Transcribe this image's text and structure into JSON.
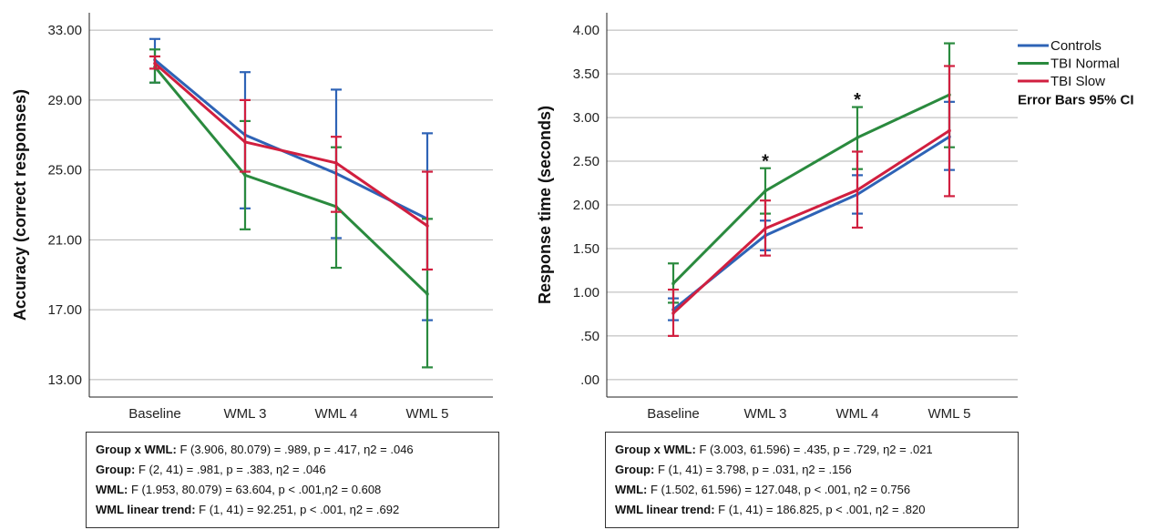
{
  "chart_data": [
    {
      "type": "line",
      "ylabel": "Accuracy (correct responses)",
      "xlabel": "",
      "categories": [
        "Baseline",
        "WML 3",
        "WML 4",
        "WML 5"
      ],
      "yticks": [
        "13.00",
        "17.00",
        "21.00",
        "25.00",
        "29.00",
        "33.00"
      ],
      "ylim": [
        12,
        34
      ],
      "grid": true,
      "series": [
        {
          "name": "Controls",
          "color": "#2e63b6",
          "values": [
            31.3,
            27.0,
            24.8,
            22.2
          ],
          "ci_low": [
            30.0,
            22.8,
            21.1,
            16.4
          ],
          "ci_high": [
            32.5,
            30.6,
            29.6,
            27.1
          ]
        },
        {
          "name": "TBI Normal",
          "color": "#2a8a3e",
          "values": [
            30.9,
            24.7,
            22.9,
            17.9
          ],
          "ci_low": [
            30.0,
            21.6,
            19.4,
            13.7
          ],
          "ci_high": [
            31.9,
            27.8,
            26.3,
            22.2
          ]
        },
        {
          "name": "TBI Slow",
          "color": "#d11f3f",
          "values": [
            31.1,
            26.6,
            25.4,
            21.8
          ],
          "ci_low": [
            30.8,
            24.9,
            22.6,
            19.3
          ],
          "ci_high": [
            31.5,
            29.0,
            26.9,
            24.9
          ]
        }
      ],
      "stats": [
        {
          "label": "Group x WML:",
          "text": " F (3.906, 80.079) = .989, p = .417, η2 = .046"
        },
        {
          "label": "Group:",
          "text": " F (2, 41) = .981, p = .383, η2 = .046"
        },
        {
          "label": "WML:",
          "text": " F (1.953, 80.079) = 63.604, p < .001,η2 = 0.608"
        },
        {
          "label": "WML linear trend:",
          "text": " F (1, 41) = 92.251, p < .001, η2 = .692"
        }
      ]
    },
    {
      "type": "line",
      "ylabel": "Response time (seconds)",
      "xlabel": "",
      "categories": [
        "Baseline",
        "WML 3",
        "WML 4",
        "WML 5"
      ],
      "yticks": [
        ".00",
        ".50",
        "1.00",
        "1.50",
        "2.00",
        "2.50",
        "3.00",
        "3.50",
        "4.00"
      ],
      "ylim": [
        -0.2,
        4.2
      ],
      "grid": true,
      "annotations": [
        {
          "text": "*",
          "category": "WML 3",
          "y": 2.56
        },
        {
          "text": "*",
          "category": "WML 4",
          "y": 3.26
        }
      ],
      "series": [
        {
          "name": "Controls",
          "color": "#2e63b6",
          "values": [
            0.8,
            1.65,
            2.12,
            2.78
          ],
          "ci_low": [
            0.68,
            1.48,
            1.9,
            2.4
          ],
          "ci_high": [
            0.93,
            1.82,
            2.34,
            3.18
          ]
        },
        {
          "name": "TBI Normal",
          "color": "#2a8a3e",
          "values": [
            1.1,
            2.16,
            2.77,
            3.26
          ],
          "ci_low": [
            0.88,
            1.9,
            2.41,
            2.66
          ],
          "ci_high": [
            1.33,
            2.42,
            3.12,
            3.85
          ]
        },
        {
          "name": "TBI Slow",
          "color": "#d11f3f",
          "values": [
            0.76,
            1.73,
            2.17,
            2.85
          ],
          "ci_low": [
            0.5,
            1.42,
            1.74,
            2.1
          ],
          "ci_high": [
            1.03,
            2.05,
            2.61,
            3.59
          ]
        }
      ],
      "legend": {
        "placement": "top-right",
        "entries": [
          "Controls",
          "TBI Normal",
          "TBI Slow"
        ],
        "note": "Error Bars 95% CI"
      },
      "stats": [
        {
          "label": "Group x WML:",
          "text": " F (3.003, 61.596) = .435, p = .729, η2 = .021"
        },
        {
          "label": "Group:",
          "text": " F (1, 41) = 3.798, p = .031, η2 = .156"
        },
        {
          "label": "WML:",
          "text": " F (1.502, 61.596) = 127.048, p < .001, η2 = 0.756"
        },
        {
          "label": "WML linear trend:",
          "text": " F (1, 41) = 186.825, p < .001, η2 = .820"
        }
      ]
    }
  ]
}
